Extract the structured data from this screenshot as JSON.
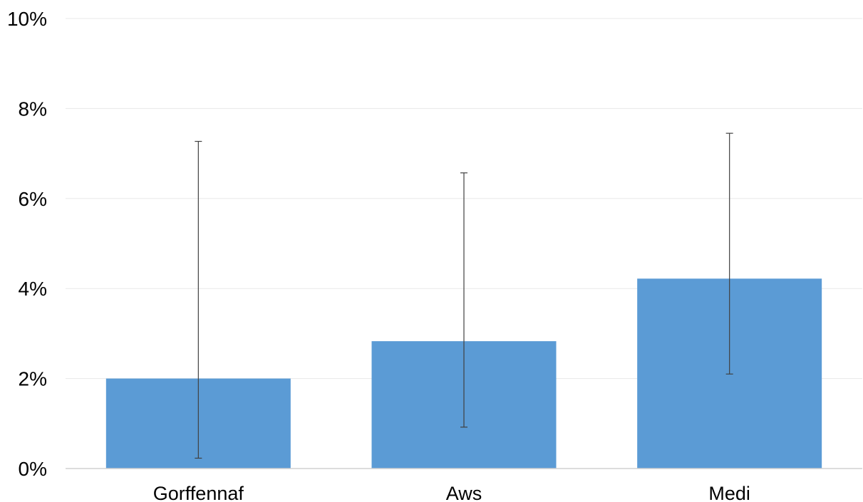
{
  "chart_data": {
    "type": "bar",
    "categories": [
      "Gorffennaf",
      "Aws",
      "Medi"
    ],
    "values": [
      2.0,
      2.83,
      4.22
    ],
    "error_bars": {
      "lower": [
        0.23,
        0.92,
        2.1
      ],
      "upper": [
        7.27,
        6.57,
        7.45
      ]
    },
    "yticks": [
      "0%",
      "2%",
      "4%",
      "6%",
      "8%",
      "10%"
    ],
    "ylim": [
      0,
      10
    ],
    "grid": true,
    "legend": "none",
    "colors": {
      "bar": "#5b9bd5",
      "error_bar": "#404040",
      "grid": "#e8e8e8",
      "axis": "#d0d0d0"
    }
  }
}
